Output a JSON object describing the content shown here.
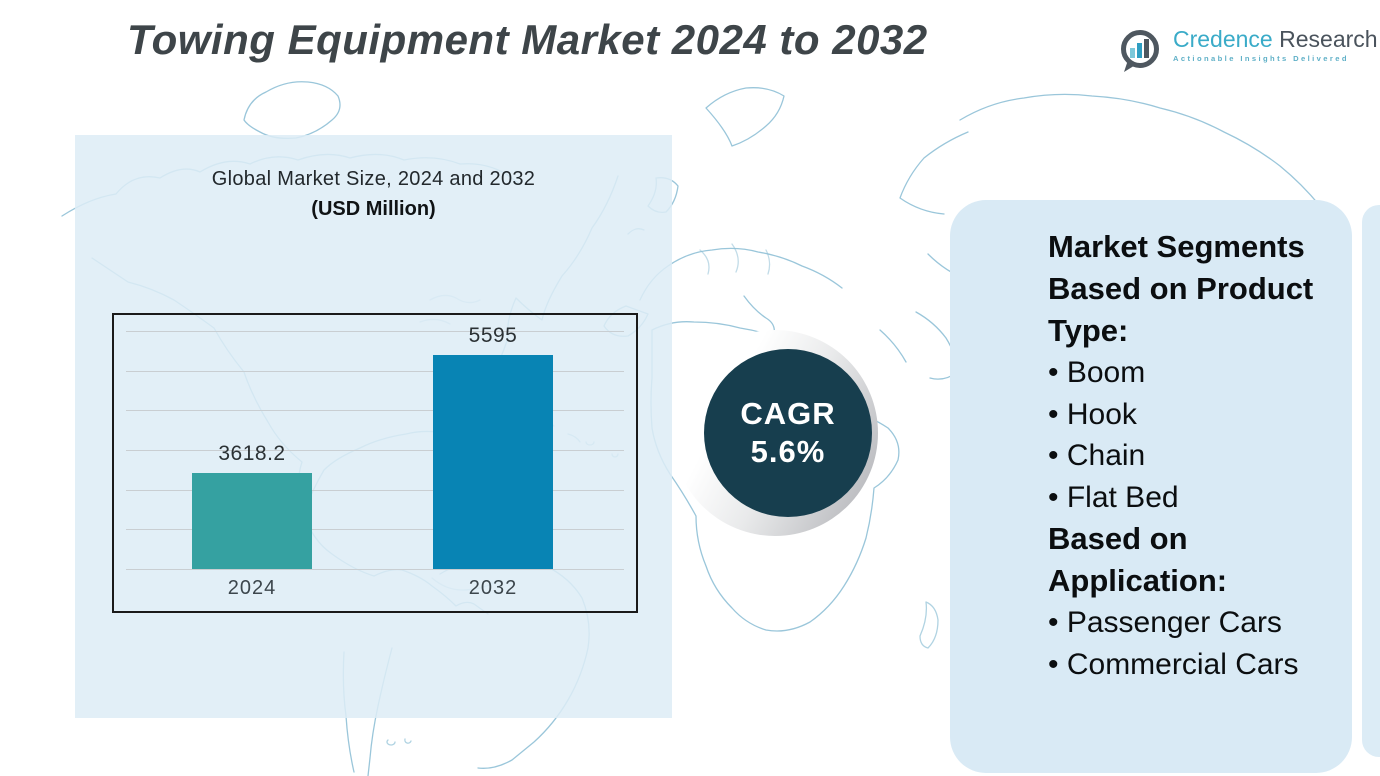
{
  "page": {
    "title": "Towing Equipment Market 2024 to 2032"
  },
  "logo": {
    "brand_primary": "Credence",
    "brand_secondary": "Research",
    "tagline": "Actionable Insights Delivered"
  },
  "chart_data": {
    "type": "bar",
    "title": "Global Market Size, 2024 and 2032",
    "subtitle": "(USD Million)",
    "categories": [
      "2024",
      "2032"
    ],
    "values": [
      3618.2,
      5595
    ],
    "value_labels": [
      "3618.2",
      "5595"
    ],
    "unit": "USD Million",
    "ylim": [
      2000,
      6000
    ],
    "gridline_count": 7,
    "grid": true,
    "legend": false,
    "bar_colors": [
      "#35a1a1",
      "#0884b4"
    ]
  },
  "cagr": {
    "label": "CAGR",
    "value": "5.6%"
  },
  "segments_panel": {
    "heading_product": "Market Segments Based on Product Type:",
    "product_types": [
      "Boom",
      "Hook",
      "Chain",
      "Flat Bed"
    ],
    "heading_application": "Based on Application:",
    "applications": [
      "Passenger Cars",
      "Commercial Cars"
    ]
  },
  "colors": {
    "bar_2024": "#35a1a1",
    "bar_2032": "#0884b4",
    "cagr_circle": "#173e4e",
    "panel_bg": "#d9eaf5",
    "map_stroke": "#8fc0d6",
    "title_text": "#3e4549",
    "brand_teal": "#3aabc8",
    "brand_gray": "#4a535c"
  }
}
